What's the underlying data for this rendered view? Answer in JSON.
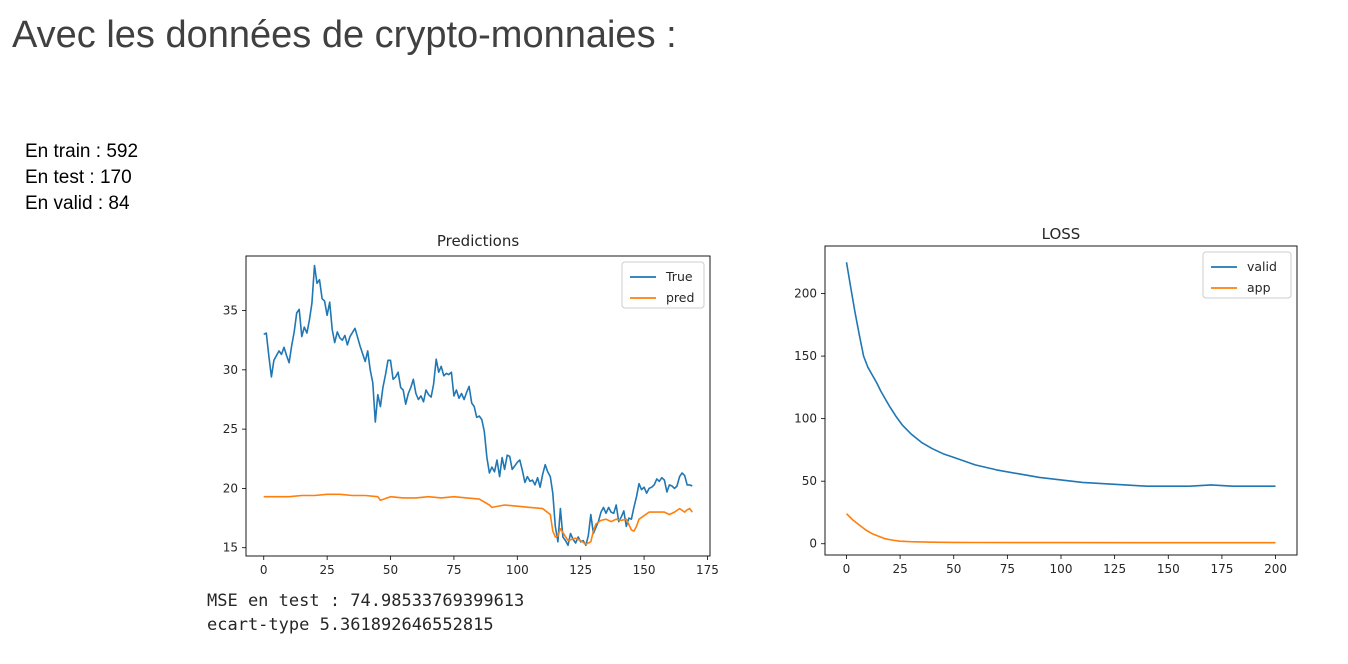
{
  "page": {
    "title": "Avec les données de crypto-monnaies :",
    "stats": [
      "En train : 592",
      "En test : 170",
      "En valid : 84"
    ],
    "output": [
      "MSE en test : 74.98533769399613",
      "ecart-type 5.361892646552815"
    ]
  },
  "chart_data": [
    {
      "type": "line",
      "title": "Predictions",
      "xlim": [
        -7,
        176
      ],
      "ylim": [
        14.3,
        39.6
      ],
      "xticks": [
        0,
        25,
        50,
        75,
        100,
        125,
        150,
        175
      ],
      "yticks": [
        15,
        20,
        25,
        30,
        35
      ],
      "legend_position": "top-right",
      "series": [
        {
          "name": "True",
          "color": "#1f77b4",
          "x": [
            0,
            1,
            2,
            3,
            4,
            6,
            7,
            8,
            9,
            10,
            11,
            12,
            13,
            14,
            15,
            16,
            17,
            18,
            19,
            20,
            21,
            22,
            23,
            24,
            25,
            26,
            27,
            28,
            29,
            30,
            31,
            32,
            33,
            34,
            36,
            38,
            40,
            41,
            42,
            43,
            44,
            45,
            46,
            47,
            48,
            49,
            50,
            51,
            52,
            53,
            54,
            55,
            56,
            57,
            58,
            59,
            60,
            61,
            62,
            63,
            64,
            65,
            66,
            67,
            68,
            69,
            70,
            71,
            72,
            73,
            74,
            75,
            76,
            77,
            78,
            79,
            80,
            81,
            82,
            83,
            84,
            85,
            86,
            87,
            88,
            89,
            90,
            91,
            92,
            93,
            94,
            95,
            96,
            97,
            98,
            99,
            100,
            101,
            102,
            103,
            104,
            105,
            106,
            107,
            108,
            109,
            110,
            111,
            112,
            113,
            114,
            115,
            116,
            117,
            118,
            119,
            120,
            121,
            122,
            123,
            124,
            125,
            126,
            127,
            128,
            129,
            130,
            131,
            132,
            133,
            134,
            135,
            136,
            137,
            138,
            139,
            140,
            141,
            142,
            143,
            144,
            145,
            146,
            147,
            148,
            149,
            150,
            151,
            152,
            153,
            154,
            155,
            156,
            157,
            158,
            159,
            160,
            161,
            162,
            163,
            164,
            165,
            166,
            167,
            168,
            169
          ],
          "y": [
            33,
            33.1,
            31.2,
            29.4,
            30.8,
            31.6,
            31.3,
            31.9,
            31.2,
            30.6,
            32.0,
            33.2,
            34.8,
            35.1,
            32.8,
            33.6,
            33.1,
            34.2,
            35.6,
            38.8,
            37.3,
            37.6,
            36.0,
            35.8,
            34.6,
            35.7,
            33.4,
            32.3,
            33.2,
            32.7,
            32.5,
            32.9,
            32.1,
            32.8,
            33.5,
            32.0,
            30.7,
            31.6,
            30.0,
            28.9,
            25.6,
            27.9,
            26.9,
            28.5,
            29.6,
            30.8,
            30.8,
            29.2,
            29.4,
            29.8,
            28.5,
            28.3,
            27.1,
            28.0,
            28.5,
            29.2,
            28.0,
            27.5,
            27.8,
            27.3,
            28.3,
            27.9,
            27.7,
            28.8,
            30.9,
            29.8,
            30.3,
            29.5,
            29.7,
            29.6,
            29.8,
            27.8,
            28.3,
            27.6,
            28.0,
            27.5,
            28.1,
            28.6,
            27.2,
            26.9,
            26.0,
            26.1,
            25.8,
            24.8,
            22.6,
            21.3,
            21.8,
            21.4,
            22.4,
            21.0,
            22.6,
            21.6,
            22.8,
            22.7,
            21.6,
            21.9,
            22.2,
            22.4,
            21.5,
            20.5,
            21.0,
            20.6,
            20.7,
            20.3,
            20.9,
            20.1,
            21.2,
            22.0,
            21.4,
            21.0,
            19.6,
            16.8,
            15.5,
            18.3,
            15.9,
            15.6,
            15.2,
            16.2,
            15.7,
            15.4,
            15.9,
            15.5,
            15.6,
            15.2,
            16.0,
            17.8,
            16.2,
            16.7,
            17.2,
            18.0,
            18.4,
            17.9,
            18.4,
            18.0,
            17.9,
            18.6,
            17.2,
            17.6,
            18.1,
            16.8,
            17.5,
            17.4,
            18.4,
            19.3,
            20.4,
            19.9,
            20.1,
            19.6,
            20.0,
            20.1,
            20.3,
            20.8,
            20.6,
            20.9,
            20.7,
            19.7,
            20.3,
            20.2,
            20.0,
            20.2,
            21.0,
            21.3,
            21.1,
            20.3,
            20.3,
            20.2
          ]
        },
        {
          "name": "pred",
          "color": "#ff7f0e",
          "x": [
            0,
            5,
            10,
            15,
            20,
            25,
            30,
            35,
            40,
            45,
            46,
            50,
            55,
            60,
            65,
            70,
            75,
            80,
            85,
            89,
            90,
            95,
            100,
            105,
            110,
            113,
            114,
            115,
            116,
            117,
            120,
            123,
            125,
            127,
            129,
            130,
            131,
            133,
            135,
            137,
            139,
            141,
            143,
            145,
            146,
            147,
            148,
            150,
            152,
            155,
            158,
            160,
            162,
            164,
            166,
            167,
            168,
            169
          ],
          "y": [
            19.3,
            19.3,
            19.3,
            19.4,
            19.4,
            19.5,
            19.5,
            19.4,
            19.4,
            19.3,
            19.0,
            19.3,
            19.2,
            19.2,
            19.3,
            19.2,
            19.3,
            19.2,
            19.1,
            18.6,
            18.4,
            18.6,
            18.5,
            18.4,
            18.3,
            17.8,
            16.4,
            15.9,
            16.0,
            16.6,
            15.6,
            15.8,
            15.6,
            15.3,
            15.5,
            16.4,
            17.0,
            17.3,
            17.4,
            17.2,
            17.4,
            17.3,
            17.4,
            16.5,
            16.4,
            16.8,
            17.4,
            17.7,
            18.0,
            18.0,
            18.0,
            17.8,
            18.0,
            18.3,
            18.0,
            18.2,
            18.3,
            18.0
          ]
        }
      ]
    },
    {
      "type": "line",
      "title": "LOSS",
      "xlim": [
        -10,
        210
      ],
      "ylim": [
        -9,
        238
      ],
      "xticks": [
        0,
        25,
        50,
        75,
        100,
        125,
        150,
        175,
        200
      ],
      "yticks": [
        0,
        50,
        100,
        150,
        200
      ],
      "legend_position": "top-right",
      "series": [
        {
          "name": "valid",
          "color": "#1f77b4",
          "x": [
            0,
            2,
            4,
            6,
            8,
            10,
            12,
            14,
            16,
            18,
            20,
            23,
            26,
            30,
            35,
            40,
            45,
            50,
            60,
            70,
            80,
            90,
            100,
            110,
            120,
            130,
            140,
            150,
            160,
            170,
            180,
            190,
            200
          ],
          "y": [
            225,
            205,
            185,
            167,
            150,
            141,
            135,
            129,
            122,
            116,
            110,
            102,
            95,
            88,
            81,
            76,
            72,
            69,
            63,
            59,
            56,
            53,
            51,
            49,
            48,
            47,
            46,
            46,
            46,
            47,
            46,
            46,
            46
          ]
        },
        {
          "name": "app",
          "color": "#ff7f0e",
          "x": [
            0,
            3,
            6,
            9,
            12,
            15,
            18,
            21,
            25,
            30,
            40,
            50,
            60,
            80,
            100,
            150,
            200
          ],
          "y": [
            24,
            19,
            15,
            11,
            8,
            6,
            4,
            3,
            2,
            1.6,
            1.2,
            1.1,
            1.0,
            0.9,
            0.9,
            0.8,
            0.8
          ]
        }
      ]
    }
  ]
}
